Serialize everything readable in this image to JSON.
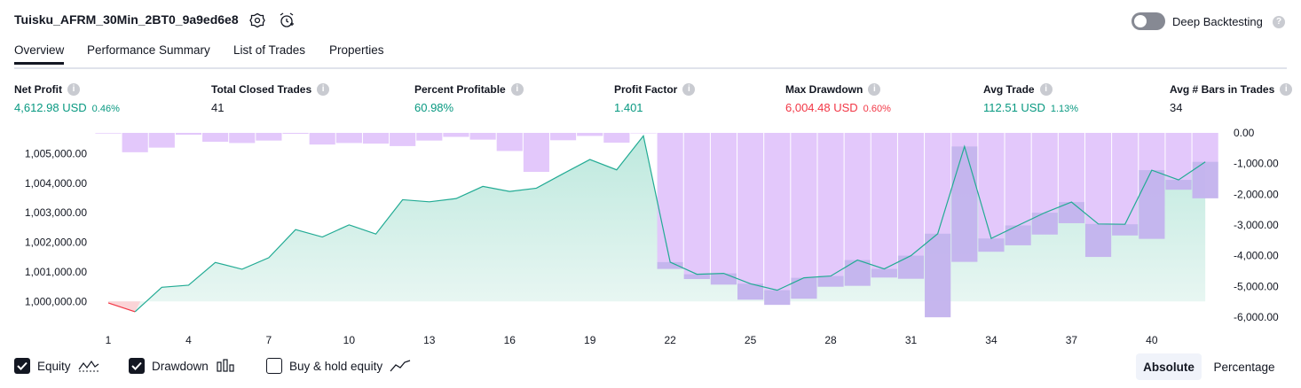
{
  "header": {
    "strategy_name": "Tuisku_AFRM_30Min_2BT0_9a9ed6e8",
    "deep_backtesting_label": "Deep Backtesting",
    "deep_backtesting_enabled": false
  },
  "tabs": [
    {
      "label": "Overview",
      "active": true
    },
    {
      "label": "Performance Summary",
      "active": false
    },
    {
      "label": "List of Trades",
      "active": false
    },
    {
      "label": "Properties",
      "active": false
    }
  ],
  "stats": [
    {
      "label": "Net Profit",
      "value": "4,612.98 USD",
      "pct": "0.46%",
      "color": "#089981"
    },
    {
      "label": "Total Closed Trades",
      "value": "41",
      "pct": "",
      "color": "#131722"
    },
    {
      "label": "Percent Profitable",
      "value": "60.98%",
      "pct": "",
      "color": "#089981"
    },
    {
      "label": "Profit Factor",
      "value": "1.401",
      "pct": "",
      "color": "#089981"
    },
    {
      "label": "Max Drawdown",
      "value": "6,004.48 USD",
      "pct": "0.60%",
      "color": "#f23645"
    },
    {
      "label": "Avg Trade",
      "value": "112.51 USD",
      "pct": "1.13%",
      "color": "#089981"
    },
    {
      "label": "Avg # Bars in Trades",
      "value": "34",
      "pct": "",
      "color": "#131722"
    }
  ],
  "legend": {
    "equity_label": "Equity",
    "equity_checked": true,
    "drawdown_label": "Drawdown",
    "drawdown_checked": true,
    "buyhold_label": "Buy & hold equity",
    "buyhold_checked": false
  },
  "view_toggle": {
    "absolute_label": "Absolute",
    "percentage_label": "Percentage",
    "selected": "Absolute"
  },
  "colors": {
    "equity_line": "#22ab94",
    "equity_fill": "#c6eae2",
    "equity_negative": "#f23645",
    "drawdown_bar": "#e1c5fb",
    "text": "#131722"
  },
  "chart_data": {
    "type": "line",
    "x_ticks": [
      1,
      4,
      7,
      10,
      13,
      16,
      19,
      22,
      25,
      28,
      31,
      34,
      37,
      40
    ],
    "x": [
      1,
      2,
      3,
      4,
      5,
      6,
      7,
      8,
      9,
      10,
      11,
      12,
      13,
      14,
      15,
      16,
      17,
      18,
      19,
      20,
      21,
      22,
      23,
      24,
      25,
      26,
      27,
      28,
      29,
      30,
      31,
      32,
      33,
      34,
      35,
      36,
      37,
      38,
      39,
      40,
      41,
      42
    ],
    "series": [
      {
        "name": "Equity",
        "axis": "left",
        "values": [
          999950,
          999650,
          1000480,
          1000550,
          1001320,
          1001090,
          1001480,
          1002430,
          1002180,
          1002590,
          1002280,
          1003440,
          1003370,
          1003480,
          1003890,
          1003720,
          1003830,
          1004320,
          1004800,
          1004450,
          1005600,
          1001330,
          1000920,
          1000950,
          1000600,
          1000380,
          1000800,
          1000860,
          1001400,
          1001100,
          1001550,
          1002290,
          1005240,
          1002130,
          1002570,
          1003000,
          1003360,
          1002620,
          1002610,
          1004440,
          1004110,
          1004720
        ]
      },
      {
        "name": "Drawdown",
        "axis": "right",
        "values": [
          -20,
          -630,
          -480,
          -60,
          -290,
          -330,
          -250,
          -30,
          -380,
          -330,
          -350,
          -430,
          -250,
          -130,
          -220,
          -590,
          -1270,
          -240,
          -100,
          -320,
          0,
          -4430,
          -4760,
          -4940,
          -5430,
          -5600,
          -5400,
          -5010,
          -4980,
          -4710,
          -4750,
          -6004,
          -4200,
          -3870,
          -3660,
          -3310,
          -2940,
          -4040,
          -3340,
          -3450,
          -1850,
          -2130
        ]
      }
    ],
    "y_left_ticks": [
      "1,000,000.00",
      "1,001,000.00",
      "1,002,000.00",
      "1,003,000.00",
      "1,004,000.00",
      "1,005,000.00"
    ],
    "y_left_range": [
      999500,
      1005700
    ],
    "y_right_ticks": [
      "0.00",
      "-1,000.00",
      "-2,000.00",
      "-3,000.00",
      "-4,000.00",
      "-5,000.00",
      "-6,000.00"
    ],
    "y_right_range": [
      -6000,
      0
    ],
    "grid": false
  }
}
